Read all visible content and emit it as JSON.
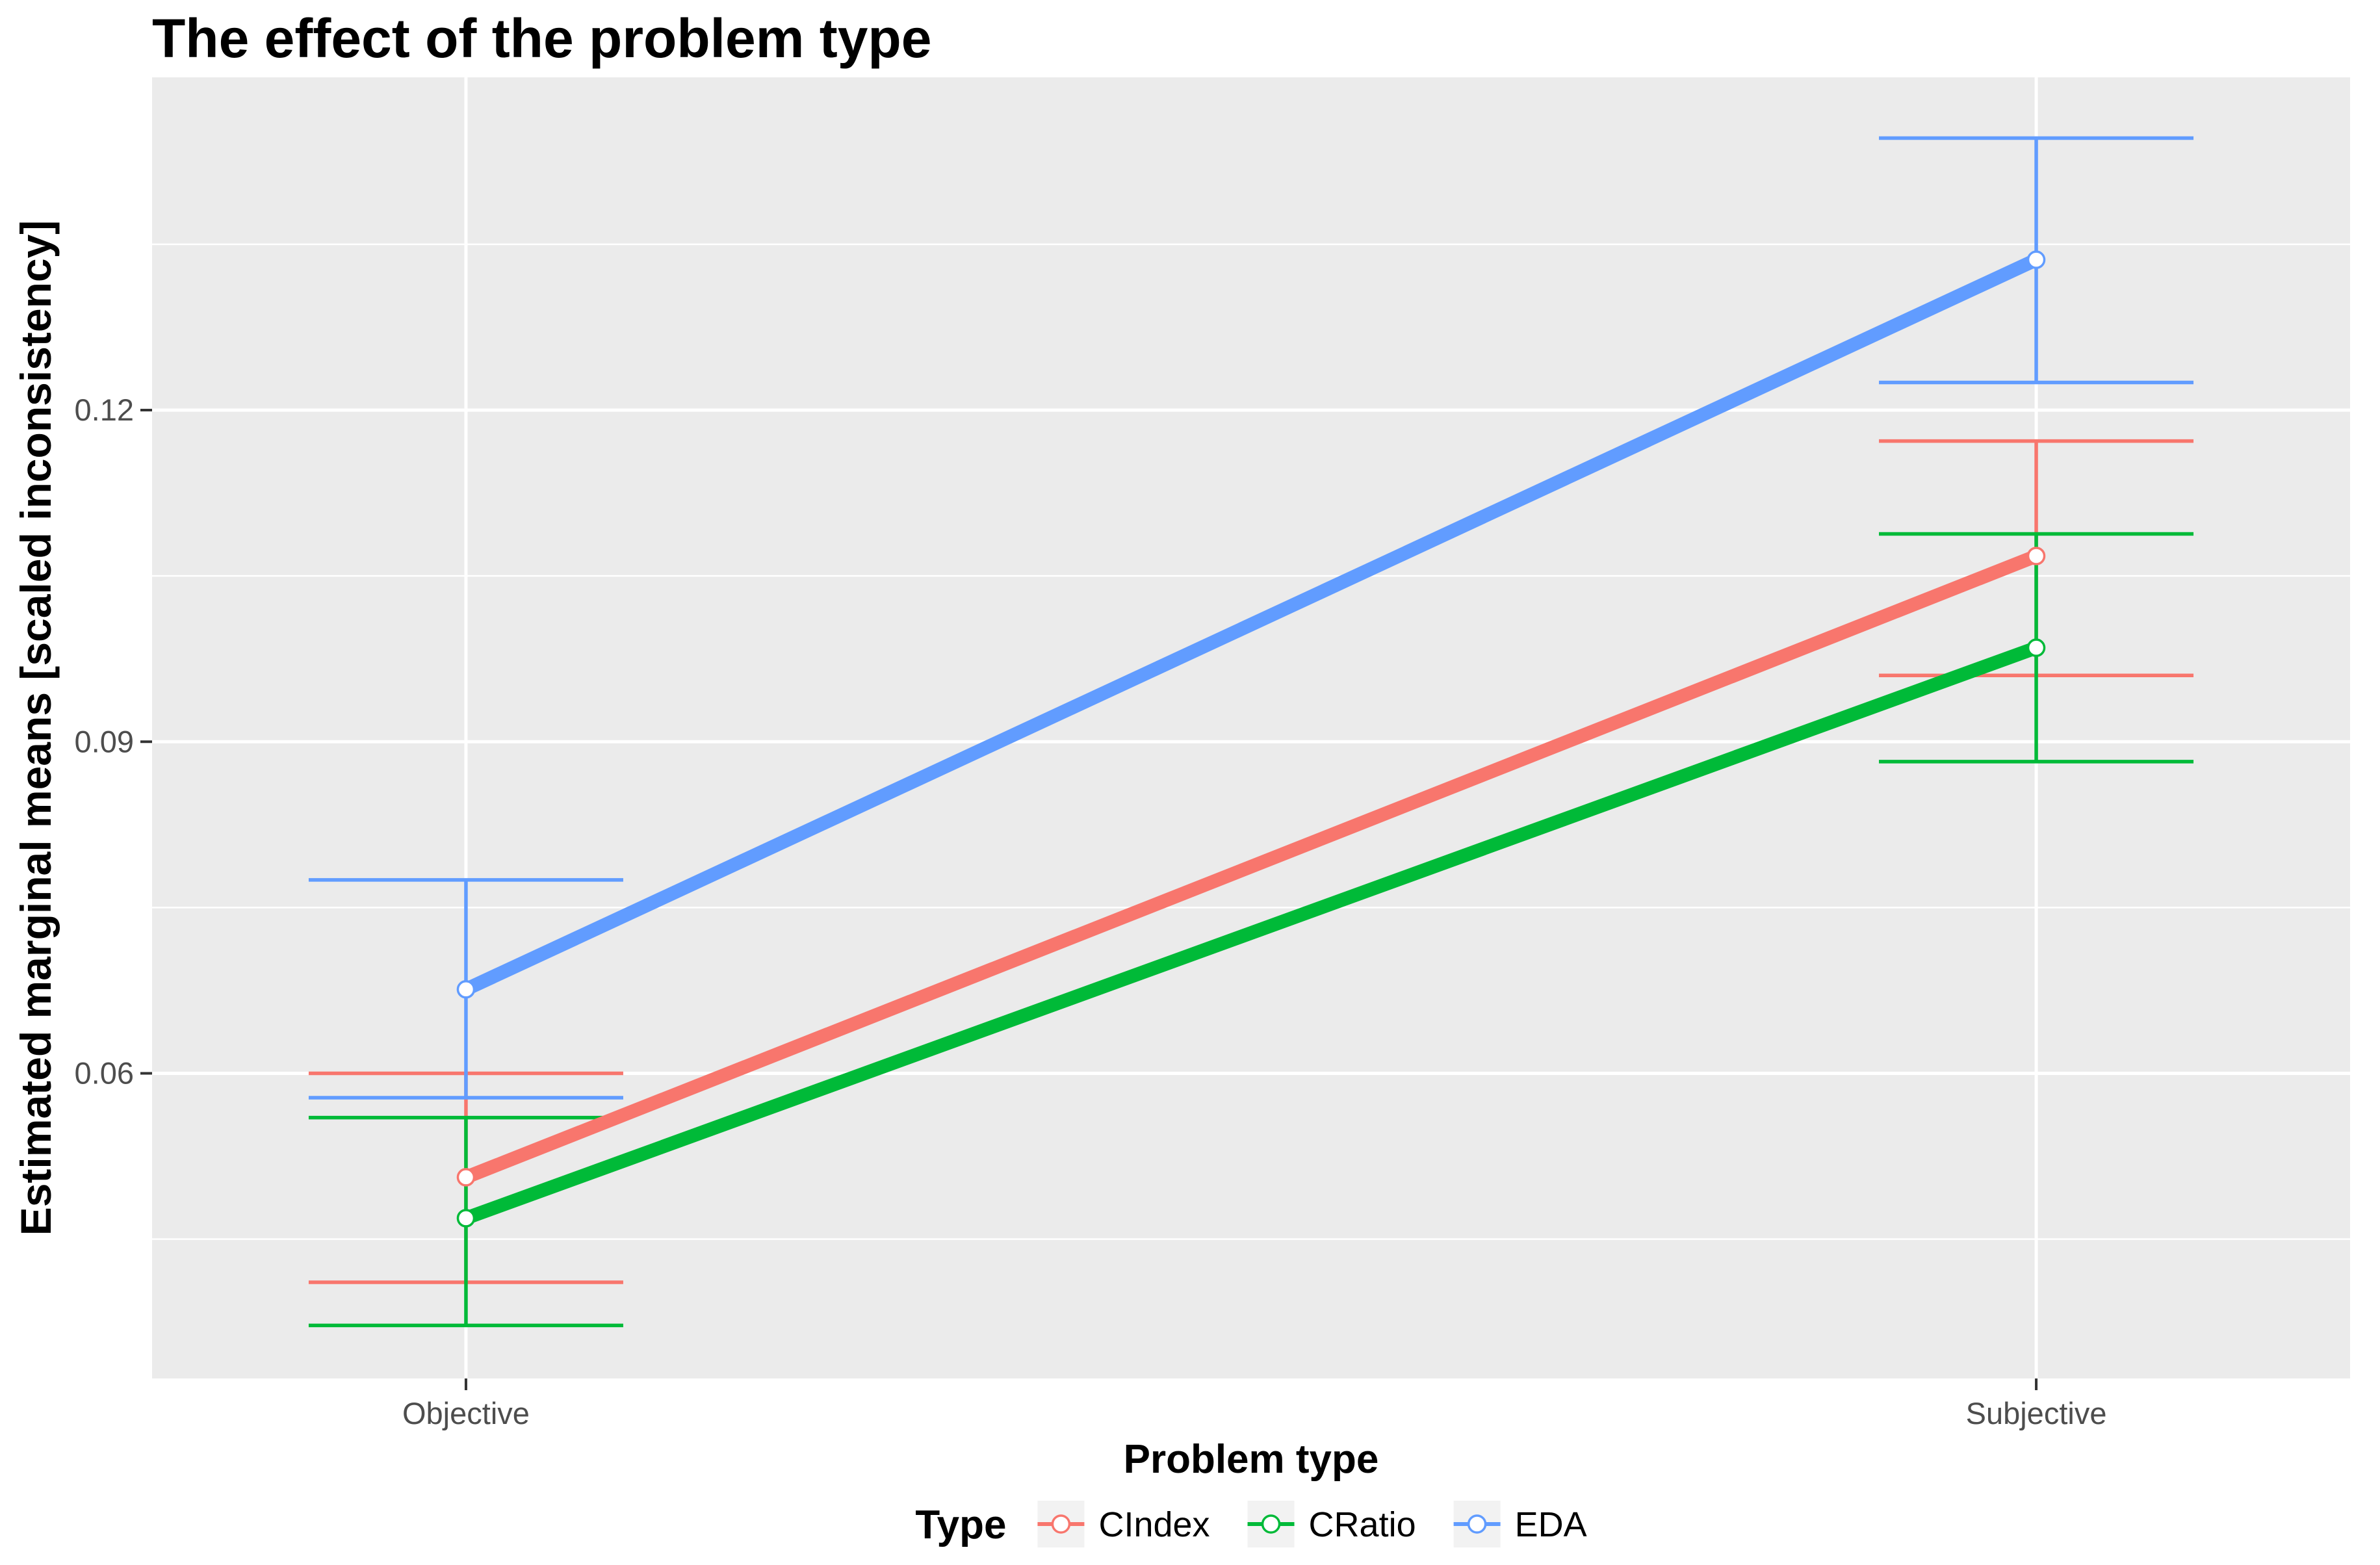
{
  "chart_data": {
    "type": "line",
    "title": "The effect of the problem type",
    "xlabel": "Problem type",
    "ylabel": "Estimated marginal means [scaled inconsistency]",
    "categories": [
      "Objective",
      "Subjective"
    ],
    "ytick_labels": [
      "0.06",
      "0.09",
      "0.12"
    ],
    "ytick_values": [
      0.06,
      0.09,
      0.12
    ],
    "minor_tick_values": [
      0.045,
      0.075,
      0.105,
      0.135
    ],
    "ylim": [
      0.0324,
      0.1501
    ],
    "grid": true,
    "legend": {
      "title": "Type",
      "position": "bottom"
    },
    "series": [
      {
        "name": "CIndex",
        "color": "#F8766D",
        "values": [
          0.0506,
          0.1068
        ],
        "ci_lower": [
          0.0411,
          0.096
        ],
        "ci_upper": [
          0.06,
          0.1172
        ]
      },
      {
        "name": "CRatio",
        "color": "#00BA38",
        "values": [
          0.0469,
          0.0985
        ],
        "ci_lower": [
          0.0372,
          0.0882
        ],
        "ci_upper": [
          0.056,
          0.1088
        ]
      },
      {
        "name": "EDA",
        "color": "#619CFF",
        "values": [
          0.0676,
          0.1336
        ],
        "ci_lower": [
          0.0578,
          0.1225
        ],
        "ci_upper": [
          0.0775,
          0.1446
        ]
      }
    ],
    "colors": {
      "panel_bg": "#EBEBEB",
      "grid": "#FFFFFF",
      "tick_text": "#4D4D4D",
      "tick_mark": "#333333",
      "title_text": "#000000",
      "legend_key_bg": "#F2F2F2",
      "point_fill": "#FFFFFF"
    }
  }
}
